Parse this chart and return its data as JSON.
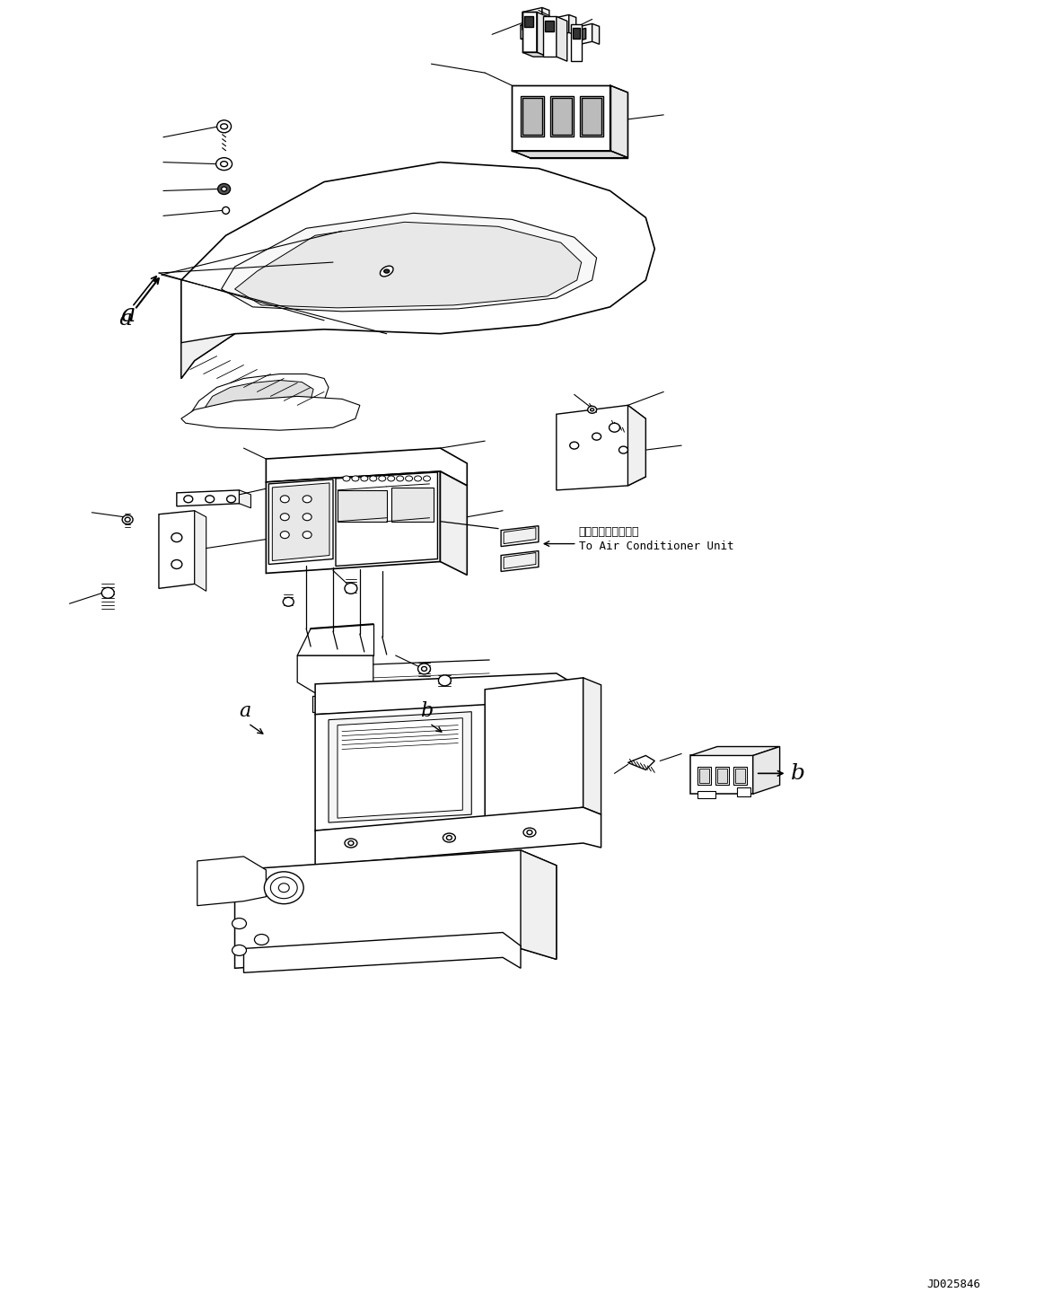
{
  "background_color": "#ffffff",
  "line_color": "#000000",
  "diagram_id": "JD025846",
  "annotation_japanese": "エアコンユニットへ",
  "annotation_english": "To Air Conditioner Unit",
  "lw": 1.0
}
